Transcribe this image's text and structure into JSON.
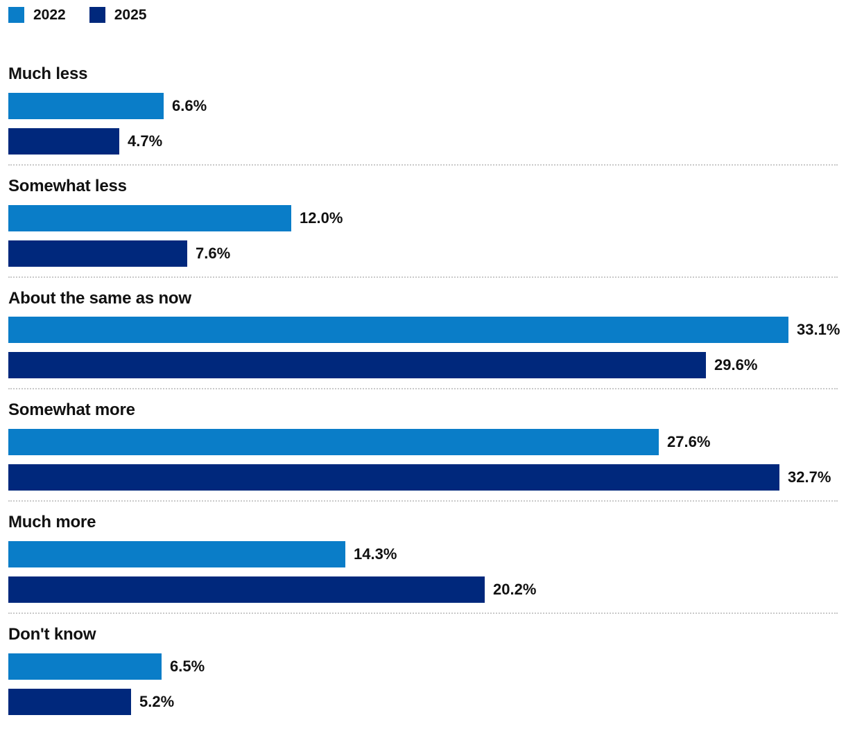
{
  "page": {
    "background": "#ffffff",
    "text_color": "#111111",
    "separator_color": "#c9c9c9"
  },
  "legend": {
    "items": [
      {
        "label": "2022",
        "color": "#0a7dc8"
      },
      {
        "label": "2025",
        "color": "#00287c"
      }
    ]
  },
  "chart_data": {
    "type": "bar",
    "orientation": "horizontal",
    "title": "",
    "categories": [
      "Much less",
      "Somewhat less",
      "About the same as now",
      "Somewhat more",
      "Much more",
      "Don't know"
    ],
    "series": [
      {
        "name": "2022",
        "color": "#0a7dc8",
        "values": [
          6.6,
          12.0,
          33.1,
          27.6,
          14.3,
          6.5
        ],
        "labels": [
          "6.6%",
          "12.0%",
          "33.1%",
          "27.6%",
          "14.3%",
          "6.5%"
        ]
      },
      {
        "name": "2025",
        "color": "#00287c",
        "values": [
          4.7,
          7.6,
          29.6,
          32.7,
          20.2,
          5.2
        ],
        "labels": [
          "4.7%",
          "7.6%",
          "29.6%",
          "32.7%",
          "20.2%",
          "5.2%"
        ]
      }
    ],
    "xlim": [
      0,
      35.2
    ],
    "grid": false,
    "legend_position": "top-left",
    "value_label_format": "percent_1dp"
  }
}
